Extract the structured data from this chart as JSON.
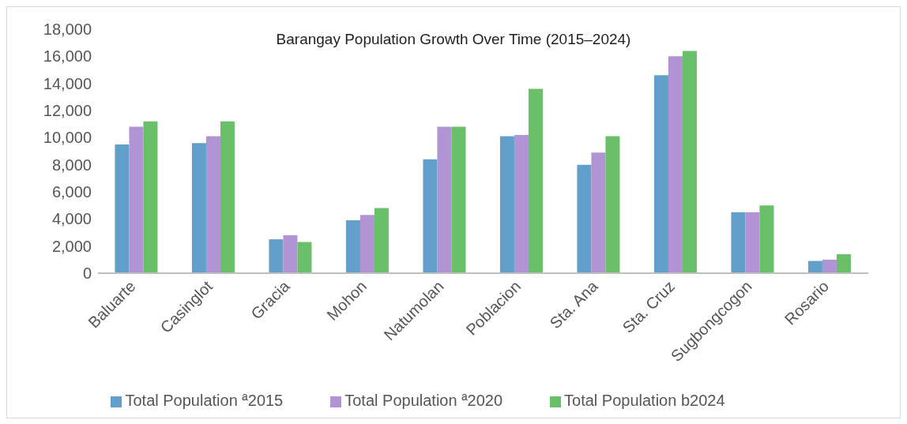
{
  "chart_data": {
    "type": "bar",
    "title": "Barangay Population Growth Over Time (2015–2024)",
    "categories": [
      "Baluarte",
      "Casinglot",
      "Gracia",
      "Mohon",
      "Natumolan",
      "Poblacion",
      "Sta. Ana",
      "Sta. Cruz",
      "Sugbongcogon",
      "Rosario"
    ],
    "series": [
      {
        "name": "Total Population ª2015",
        "color": "#62a0cb",
        "values": [
          9500,
          9600,
          2500,
          3900,
          8400,
          10100,
          8000,
          14600,
          4500,
          900
        ]
      },
      {
        "name": "Total Population ª2020",
        "color": "#b194d4",
        "values": [
          10800,
          10100,
          2800,
          4300,
          10800,
          10200,
          8900,
          16000,
          4500,
          1000
        ]
      },
      {
        "name": "Total Population b2024",
        "color": "#6abf69",
        "values": [
          11200,
          11200,
          2300,
          4800,
          10800,
          13600,
          10100,
          16400,
          5000,
          1400
        ]
      }
    ],
    "ylim": [
      0,
      18000
    ],
    "yticks": [
      0,
      {
        "value": 2000,
        "label": "2,000"
      },
      {
        "value": 4000,
        "label": "4,000"
      },
      {
        "value": 6000,
        "label": "6,000"
      },
      {
        "value": 8000,
        "label": "8,000"
      },
      {
        "value": 10000,
        "label": "10,000"
      },
      {
        "value": 12000,
        "label": "12,000"
      },
      {
        "value": 14000,
        "label": "14,000"
      },
      {
        "value": 16000,
        "label": "16,000"
      },
      {
        "value": 18000,
        "label": "18,000"
      }
    ],
    "grid": false,
    "legend": "bottom"
  }
}
